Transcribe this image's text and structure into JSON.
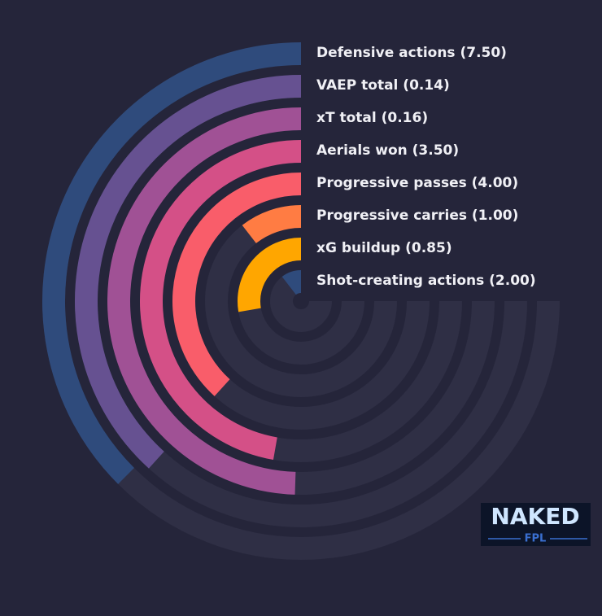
{
  "chart_data": {
    "type": "radial-bar",
    "categories": [
      "Defensive actions (7.50)",
      "VAEP total (0.14)",
      "xT total (0.16)",
      "Aerials won (3.50)",
      "Progressive passes (4.00)",
      "Progressive carries (1.00)",
      "xG buildup (0.85)",
      "Shot-creating actions (2.00)"
    ],
    "values": [
      50,
      51,
      66,
      63,
      51,
      14,
      37,
      14
    ],
    "colors": [
      "#2f4b7c",
      "#665191",
      "#a05195",
      "#d45087",
      "#f95d6a",
      "#ff7c43",
      "#ffa600",
      "#2f4b7c"
    ],
    "xlim": [
      0,
      100
    ]
  },
  "logo": {
    "title": "NAKED",
    "subtitle": "FPL"
  }
}
